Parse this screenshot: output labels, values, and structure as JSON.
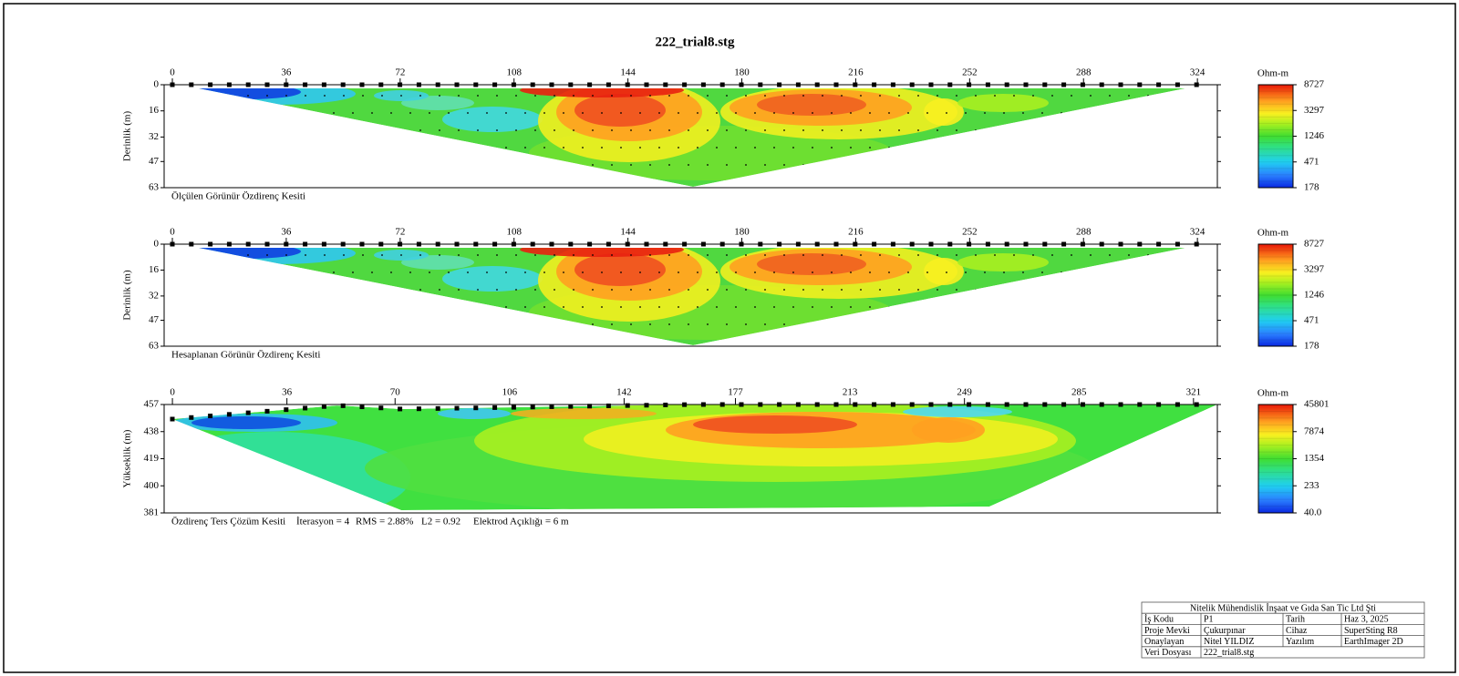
{
  "title": "222_trial8.stg",
  "chart_data": [
    {
      "type": "contour",
      "ylabel": "Derinlik (m)",
      "caption": "Ölçülen Görünür Özdirenç Kesiti",
      "xlim": [
        -2.6,
        330.3
      ],
      "xticks": [
        0,
        36,
        72,
        108,
        144,
        180,
        216,
        252,
        288,
        324
      ],
      "ylim": [
        0,
        63
      ],
      "y_reversed": true,
      "yticks": [
        0,
        16,
        32,
        47,
        63
      ],
      "colorbar": {
        "unit": "Ohm-m",
        "log": true,
        "clim": [
          178,
          8727
        ],
        "ticks": [
          178,
          471,
          1246,
          3297,
          8727
        ]
      }
    },
    {
      "type": "contour",
      "ylabel": "Derinlik (m)",
      "caption": "Hesaplanan Görünür Özdirenç Kesiti",
      "xlim": [
        -2.6,
        330.3
      ],
      "xticks": [
        0,
        36,
        72,
        108,
        144,
        180,
        216,
        252,
        288,
        324
      ],
      "ylim": [
        0,
        63
      ],
      "y_reversed": true,
      "yticks": [
        0,
        16,
        32,
        47,
        63
      ],
      "colorbar": {
        "unit": "Ohm-m",
        "log": true,
        "clim": [
          178,
          8727
        ],
        "ticks": [
          178,
          471,
          1246,
          3297,
          8727
        ]
      }
    },
    {
      "type": "contour",
      "ylabel": "Yükseklik (m)",
      "caption": "Özdirenç Ters Çözüm Kesiti",
      "stats": [
        "İterasyon = 4",
        "RMS = 2.88%",
        "L2 = 0.92",
        "Elektrod Açıklığı = 6 m"
      ],
      "xlim": [
        -2.6,
        328.5
      ],
      "xticks": [
        0,
        36,
        70,
        106,
        142,
        177,
        213,
        249,
        285,
        321
      ],
      "ylim": [
        381,
        457
      ],
      "y_reversed": false,
      "yticks": [
        457,
        438,
        419,
        400,
        381
      ],
      "colorbar": {
        "unit": "Ohm-m",
        "log": true,
        "clim": [
          40,
          45801
        ],
        "ticks": [
          {
            "value": 40,
            "label": "40.0"
          },
          233,
          1354,
          7874,
          45801
        ]
      }
    }
  ],
  "info_table": {
    "company": "Nitelik Mühendislik İnşaat ve Gıda San Tic Ltd Şti",
    "rows": [
      [
        "İş Kodu",
        "P1",
        "Tarih",
        "Haz 3, 2025"
      ],
      [
        "Proje Mevki",
        "Çukurpınar",
        "Cihaz",
        "SuperSting R8"
      ],
      [
        "Onaylayan",
        "Nitel YILDIZ",
        "Yazılım",
        "EarthImager 2D"
      ],
      [
        "Veri Dosyası",
        "222_trial8.stg"
      ]
    ]
  }
}
